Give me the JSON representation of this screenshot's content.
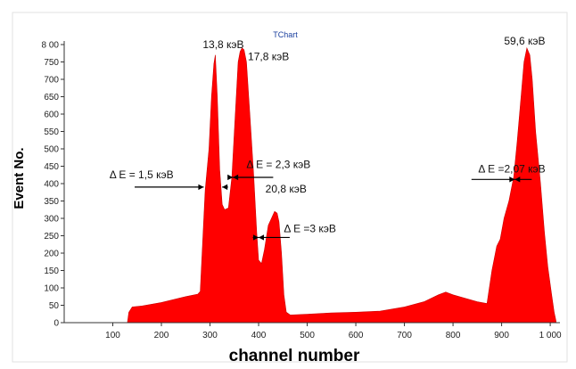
{
  "chart_data": {
    "type": "area",
    "title": "TChart",
    "xlabel": "channel number",
    "ylabel": "Event No.",
    "xlim": [
      0,
      1020
    ],
    "ylim": [
      0,
      800
    ],
    "x_ticks": [
      {
        "v": 100,
        "t": "100"
      },
      {
        "v": 200,
        "t": "200"
      },
      {
        "v": 300,
        "t": "300"
      },
      {
        "v": 400,
        "t": "400"
      },
      {
        "v": 500,
        "t": "500"
      },
      {
        "v": 600,
        "t": "600"
      },
      {
        "v": 700,
        "t": "700"
      },
      {
        "v": 800,
        "t": "800"
      },
      {
        "v": 900,
        "t": "900"
      },
      {
        "v": 1000,
        "t": "1 000"
      }
    ],
    "y_ticks": [
      {
        "v": 0,
        "t": "0"
      },
      {
        "v": 50,
        "t": "50"
      },
      {
        "v": 100,
        "t": "100"
      },
      {
        "v": 150,
        "t": "150"
      },
      {
        "v": 200,
        "t": "200"
      },
      {
        "v": 250,
        "t": "250"
      },
      {
        "v": 300,
        "t": "300"
      },
      {
        "v": 350,
        "t": "350"
      },
      {
        "v": 400,
        "t": "400"
      },
      {
        "v": 450,
        "t": "450"
      },
      {
        "v": 500,
        "t": "500"
      },
      {
        "v": 550,
        "t": "550"
      },
      {
        "v": 600,
        "t": "600"
      },
      {
        "v": 650,
        "t": "650"
      },
      {
        "v": 700,
        "t": "700"
      },
      {
        "v": 750,
        "t": "750"
      },
      {
        "v": 800,
        "t": "8 00"
      }
    ],
    "grid": false,
    "fill_color": "#ff0000",
    "points": [
      [
        130,
        0
      ],
      [
        133,
        30
      ],
      [
        140,
        45
      ],
      [
        160,
        48
      ],
      [
        200,
        58
      ],
      [
        250,
        75
      ],
      [
        275,
        82
      ],
      [
        280,
        90
      ],
      [
        290,
        380
      ],
      [
        298,
        500
      ],
      [
        303,
        650
      ],
      [
        308,
        745
      ],
      [
        311,
        770
      ],
      [
        315,
        650
      ],
      [
        320,
        440
      ],
      [
        325,
        340
      ],
      [
        330,
        325
      ],
      [
        338,
        330
      ],
      [
        345,
        420
      ],
      [
        352,
        600
      ],
      [
        358,
        750
      ],
      [
        362,
        780
      ],
      [
        366,
        790
      ],
      [
        370,
        785
      ],
      [
        375,
        750
      ],
      [
        382,
        600
      ],
      [
        390,
        420
      ],
      [
        396,
        260
      ],
      [
        400,
        180
      ],
      [
        406,
        170
      ],
      [
        412,
        210
      ],
      [
        420,
        280
      ],
      [
        428,
        305
      ],
      [
        433,
        320
      ],
      [
        438,
        315
      ],
      [
        442,
        290
      ],
      [
        447,
        200
      ],
      [
        452,
        80
      ],
      [
        457,
        30
      ],
      [
        465,
        22
      ],
      [
        500,
        24
      ],
      [
        550,
        28
      ],
      [
        600,
        30
      ],
      [
        650,
        33
      ],
      [
        700,
        45
      ],
      [
        740,
        60
      ],
      [
        770,
        80
      ],
      [
        785,
        88
      ],
      [
        800,
        80
      ],
      [
        820,
        72
      ],
      [
        850,
        60
      ],
      [
        870,
        55
      ],
      [
        880,
        150
      ],
      [
        890,
        220
      ],
      [
        897,
        240
      ],
      [
        905,
        300
      ],
      [
        915,
        350
      ],
      [
        925,
        420
      ],
      [
        932,
        520
      ],
      [
        940,
        650
      ],
      [
        946,
        750
      ],
      [
        952,
        790
      ],
      [
        958,
        770
      ],
      [
        963,
        700
      ],
      [
        970,
        550
      ],
      [
        980,
        400
      ],
      [
        988,
        260
      ],
      [
        995,
        160
      ],
      [
        1003,
        80
      ],
      [
        1008,
        30
      ],
      [
        1012,
        5
      ],
      [
        1012,
        0
      ]
    ],
    "annotations": [
      {
        "text": "13,8 кэВ",
        "x": 285,
        "y": 790
      },
      {
        "text": "17,8 кэВ",
        "x": 378,
        "y": 755
      },
      {
        "text": "59,6 кэВ",
        "x": 905,
        "y": 800
      },
      {
        "text": "20,8 кэВ",
        "x": 414,
        "y": 375
      },
      {
        "text": "Δ E = 1,5 кэВ",
        "x": 93,
        "y": 415
      },
      {
        "text": "Δ E = 2,3 кэВ",
        "x": 375,
        "y": 445
      },
      {
        "text": "Δ E =3 кэВ",
        "x": 452,
        "y": 260
      },
      {
        "text": "Δ E =2,07 кэВ",
        "x": 852,
        "y": 432
      }
    ],
    "fwhm_markers": [
      {
        "x1": 145,
        "x2": 287,
        "y": 390,
        "dir": "right"
      },
      {
        "x1": 325,
        "x2": 337,
        "y": 390,
        "dir": "left"
      },
      {
        "x1": 337,
        "x2": 347,
        "y": 418,
        "dir": "right"
      },
      {
        "x1": 347,
        "x2": 430,
        "y": 418,
        "dir": "left"
      },
      {
        "x1": 388,
        "x2": 400,
        "y": 245,
        "dir": "right"
      },
      {
        "x1": 400,
        "x2": 464,
        "y": 245,
        "dir": "left"
      },
      {
        "x1": 838,
        "x2": 927,
        "y": 412,
        "dir": "right"
      },
      {
        "x1": 927,
        "x2": 962,
        "y": 412,
        "dir": "left"
      }
    ]
  }
}
